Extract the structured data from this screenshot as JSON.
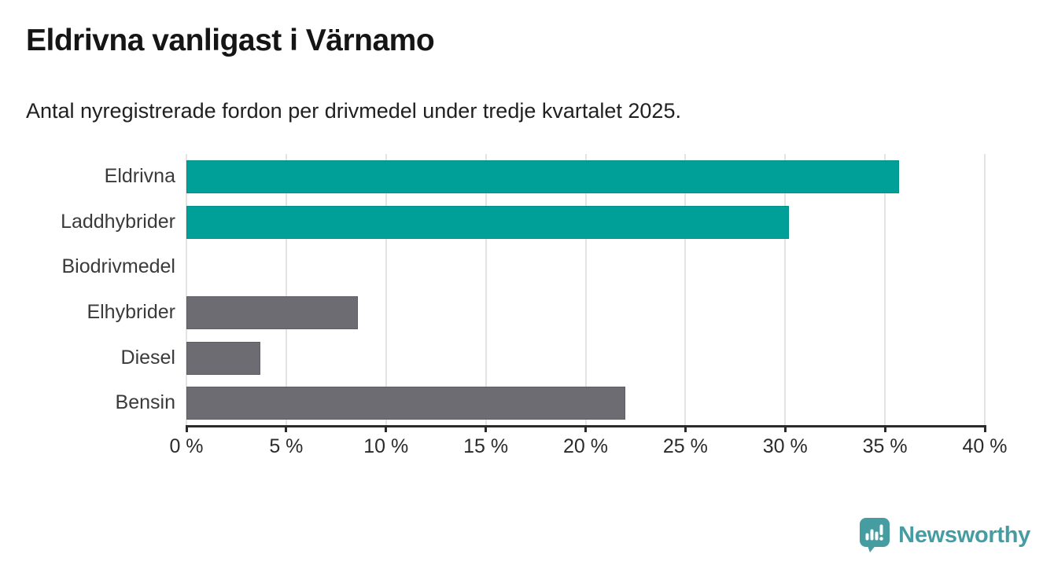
{
  "chart_data": {
    "type": "bar",
    "orientation": "horizontal",
    "title": "Eldrivna vanligast i Värnamo",
    "subtitle": "Antal nyregistrerade fordon per drivmedel under tredje kvartalet 2025.",
    "categories": [
      "Eldrivna",
      "Laddhybrider",
      "Biodrivmedel",
      "Elhybrider",
      "Diesel",
      "Bensin"
    ],
    "values": [
      35.7,
      30.2,
      0,
      8.6,
      3.7,
      22.0
    ],
    "unit": "%",
    "bar_colors": [
      "#00a098",
      "#00a098",
      "#00a098",
      "#6c6c72",
      "#6c6c72",
      "#6c6c72"
    ],
    "bar_border_colors": [
      "#00918a",
      "#00918a",
      "#00918a",
      "#5e5e64",
      "#5e5e64",
      "#5e5e64"
    ],
    "xlim": [
      0,
      40
    ],
    "x_ticks": [
      0,
      5,
      10,
      15,
      20,
      25,
      30,
      35,
      40
    ],
    "x_tick_suffix": " %",
    "xlabel": "",
    "ylabel": "",
    "grid": true,
    "legend": false
  },
  "colors": {
    "gridline": "#e4e4e4",
    "axis": "#2b2b2b",
    "title_text": "#151515",
    "label_text": "#3a3a3a",
    "accent_teal": "#00a098",
    "neutral_gray": "#6c6c72",
    "brand_teal": "#459da1"
  },
  "branding": {
    "logo_text": "Newsworthy"
  }
}
